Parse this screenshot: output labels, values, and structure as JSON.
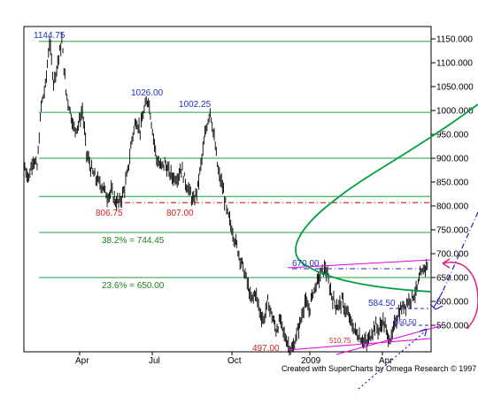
{
  "chart_data": {
    "type": "bar",
    "subtype": "OHLC price bars with technical annotations",
    "y_axis": {
      "side": "right",
      "range": [
        497,
        1165
      ],
      "ticks": [
        "1150.000",
        "1100.000",
        "1050.000",
        "1000.000",
        "950.000",
        "900.000",
        "850.000",
        "800.000",
        "750.000",
        "700.000",
        "650.000",
        "600.000",
        "550.000"
      ]
    },
    "x_axis": {
      "tick_labels": [
        "Apr",
        "Jul",
        "Oct",
        "2009",
        "Apr"
      ]
    },
    "horizontal_levels": [
      1144.75,
      996,
      900,
      820,
      744.45,
      650
    ],
    "dashed_level": 807,
    "price_labels": {
      "high_2008": "1144.75",
      "peak_2": "1026.00",
      "peak_3": "1002.25",
      "low_1": "806.75",
      "low_2": "807.00",
      "retr_382": "38.2% = 744.45",
      "retr_236": "23.6% = 650.00",
      "low_oct": "497.00",
      "high_jan": "670.00",
      "level_584": "584.50",
      "level_550": "550.50",
      "low_510": "510.75"
    },
    "series": [
      {
        "values": [
          880,
          860,
          900,
          880,
          1010,
          1050,
          1144.75,
          1060,
          1100,
          1144.75,
          1040,
          1000,
          960,
          970,
          1000,
          910,
          880,
          860,
          850,
          840,
          820,
          830,
          810,
          806.75,
          830,
          870,
          940,
          980,
          960,
          1000,
          1026,
          960,
          900,
          880,
          890,
          870,
          860,
          860,
          880,
          850,
          830,
          807,
          840,
          900,
          960,
          1002.25,
          940,
          870,
          840,
          790,
          760,
          730,
          700,
          670,
          640,
          600,
          620,
          580,
          560,
          600,
          570,
          540,
          560,
          530,
          510,
          497,
          530,
          560,
          600,
          580,
          620,
          640,
          660,
          670,
          630,
          600,
          590,
          600,
          580,
          560,
          540,
          530,
          520,
          510.75,
          530,
          550,
          540,
          560,
          530,
          520,
          560,
          580,
          590,
          600,
          610,
          620,
          650,
          670,
          680
        ]
      }
    ]
  },
  "footer": {
    "credit": "Created with SuperCharts by Omega Research © 1997"
  }
}
